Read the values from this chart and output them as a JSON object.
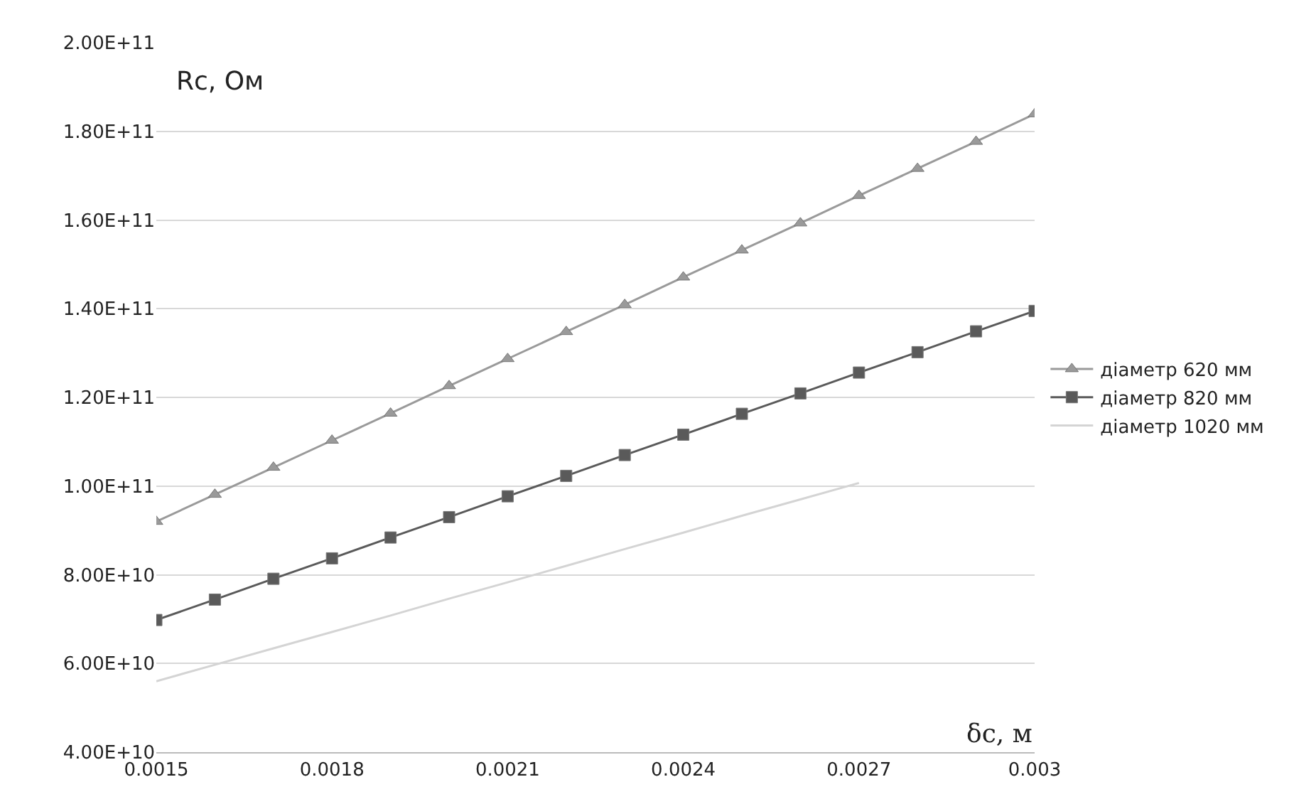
{
  "chart_data": {
    "type": "line",
    "xlabel": "δс, м",
    "ylabel": "Rc, Ом",
    "x": [
      0.0015,
      0.0016,
      0.0017,
      0.0018,
      0.0019,
      0.002,
      0.0021,
      0.0022,
      0.0023,
      0.0024,
      0.0025,
      0.0026,
      0.0027,
      0.0028,
      0.0029,
      0.003
    ],
    "series": [
      {
        "name": "діаметр 620 мм",
        "color": "#9a9a9a",
        "marker": "triangle",
        "values": [
          92000000000.0,
          98100000000.0,
          104200000000.0,
          110300000000.0,
          116400000000.0,
          122600000000.0,
          128700000000.0,
          134800000000.0,
          140900000000.0,
          147100000000.0,
          153200000000.0,
          159300000000.0,
          165500000000.0,
          171600000000.0,
          177700000000.0,
          183900000000.0
        ]
      },
      {
        "name": "діаметр 820 мм",
        "color": "#5a5a5a",
        "marker": "square",
        "values": [
          69800000000.0,
          74400000000.0,
          79100000000.0,
          83700000000.0,
          88400000000.0,
          93000000000.0,
          97700000000.0,
          102300000000.0,
          107000000000.0,
          111600000000.0,
          116300000000.0,
          120900000000.0,
          125600000000.0,
          130200000000.0,
          134900000000.0,
          139500000000.0
        ]
      },
      {
        "name": "діаметр 1020 мм",
        "color": "#d4d4d4",
        "marker": "none",
        "values": [
          56000000000.0,
          59700000000.0,
          63400000000.0,
          67100000000.0,
          70800000000.0,
          74600000000.0,
          78300000000.0,
          82000000000.0,
          85800000000.0,
          89500000000.0,
          93300000000.0,
          97000000000.0,
          100700000000.0,
          null,
          null,
          null
        ]
      }
    ],
    "xlim": [
      0.0015,
      0.003
    ],
    "xticks": [
      0.0015,
      0.0018,
      0.0021,
      0.0024,
      0.0027,
      0.003
    ],
    "ylim": [
      40000000000.0,
      200000000000.0
    ],
    "yticks": [
      {
        "value": 40000000000.0,
        "label": "4.00E+10"
      },
      {
        "value": 60000000000.0,
        "label": "6.00E+10"
      },
      {
        "value": 80000000000.0,
        "label": "8.00E+10"
      },
      {
        "value": 100000000000.0,
        "label": "1.00E+11"
      },
      {
        "value": 120000000000.0,
        "label": "1.20E+11"
      },
      {
        "value": 140000000000.0,
        "label": "1.40E+11"
      },
      {
        "value": 160000000000.0,
        "label": "1.60E+11"
      },
      {
        "value": 180000000000.0,
        "label": "1.80E+11"
      },
      {
        "value": 200000000000.0,
        "label": "2.00E+11"
      }
    ],
    "grid": "y",
    "legend": "right",
    "line_style": "solid"
  }
}
